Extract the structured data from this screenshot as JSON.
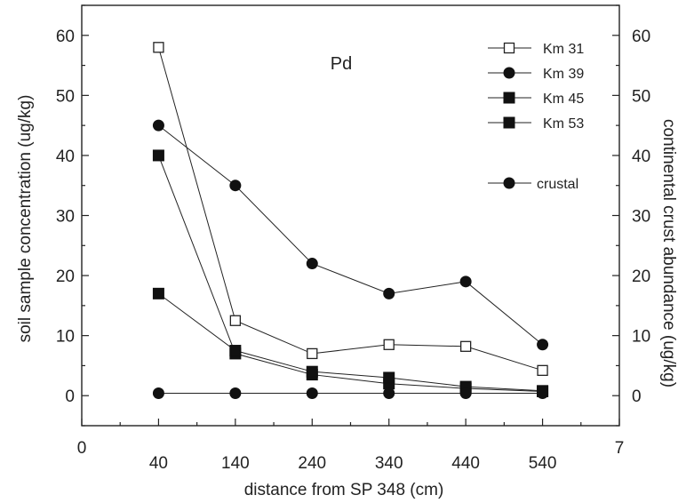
{
  "chart_data": {
    "type": "line",
    "title": "Pd",
    "xlabel": "distance from SP 348 (cm)",
    "ylabel": "soil sample concentration (ug/kg)",
    "y2label": "continental crust abundance (ug/kg)",
    "x_ticks": [
      "0",
      "40",
      "140",
      "240",
      "340",
      "440",
      "540",
      "7"
    ],
    "x_categories": [
      "40",
      "140",
      "240",
      "340",
      "440",
      "540"
    ],
    "ylim": [
      -5,
      65
    ],
    "y_ticks": [
      0,
      10,
      20,
      30,
      40,
      50,
      60
    ],
    "y2_ticks": [
      0,
      10,
      20,
      30,
      40,
      50,
      60
    ],
    "grid": false,
    "legend_position": "top-right",
    "series": [
      {
        "name": "Km 31",
        "marker": "open-square",
        "values": [
          58,
          12.5,
          7,
          8.5,
          8.2,
          4.2
        ]
      },
      {
        "name": "Km 39",
        "marker": "filled-circle",
        "values": [
          45,
          35,
          22,
          17,
          19,
          8.5
        ]
      },
      {
        "name": "Km 45",
        "marker": "filled-square",
        "values": [
          40,
          7,
          3.5,
          2,
          1.2,
          0.7
        ]
      },
      {
        "name": "Km 53",
        "marker": "filled-square",
        "values": [
          17,
          7.5,
          4,
          3,
          1.5,
          0.8
        ]
      },
      {
        "name": "crustal",
        "marker": "filled-circle",
        "axis": "right",
        "values": [
          0.4,
          0.4,
          0.4,
          0.4,
          0.4,
          0.4
        ]
      }
    ]
  }
}
